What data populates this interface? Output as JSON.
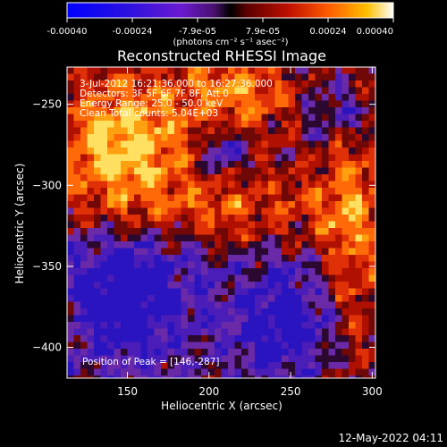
{
  "colorbar": {
    "tick_labels": [
      "-0.00040",
      "-0.00024",
      "-7.9e-05",
      "7.9e-05",
      "0.00024",
      "0.00040"
    ],
    "units_label": "(photons cm⁻² s⁻¹ asec⁻²)",
    "range": [
      -0.0004,
      0.0004
    ]
  },
  "plot": {
    "title": "Reconstructed RHESSI Image",
    "info_lines": [
      "3-Jul-2012 16:21:36.000 to 16:27:36.000",
      "Detectors: 3F 5F 6F 7F 8F, Att 0",
      "Energy Range: 25.0 - 50.0 keV",
      "Clean    Total counts: 5.04E+03"
    ],
    "peak_label": "Position of Peak = [146,-287]"
  },
  "chart_data": {
    "type": "heatmap",
    "title": "Reconstructed RHESSI Image",
    "xlabel": "Heliocentric X (arcsec)",
    "ylabel": "Heliocentric Y (arcsec)",
    "xlim": [
      113,
      302
    ],
    "ylim": [
      -419,
      -227
    ],
    "x_ticks": [
      150,
      200,
      250,
      300
    ],
    "y_ticks": [
      -250,
      -300,
      -350,
      -400
    ],
    "x_tick_labels": [
      "150",
      "200",
      "250",
      "300"
    ],
    "y_tick_labels": [
      "−250",
      "−300",
      "−350",
      "−400"
    ],
    "peak_position": [
      146,
      -287
    ],
    "colormap": "red-temperature with blue/purple negatives"
  },
  "footer": {
    "timestamp": "12-May-2022 04:11"
  },
  "colors": {
    "background": "#000000",
    "text": "#ffffff",
    "negative": "#2a10c8",
    "positive": "#e83010"
  }
}
